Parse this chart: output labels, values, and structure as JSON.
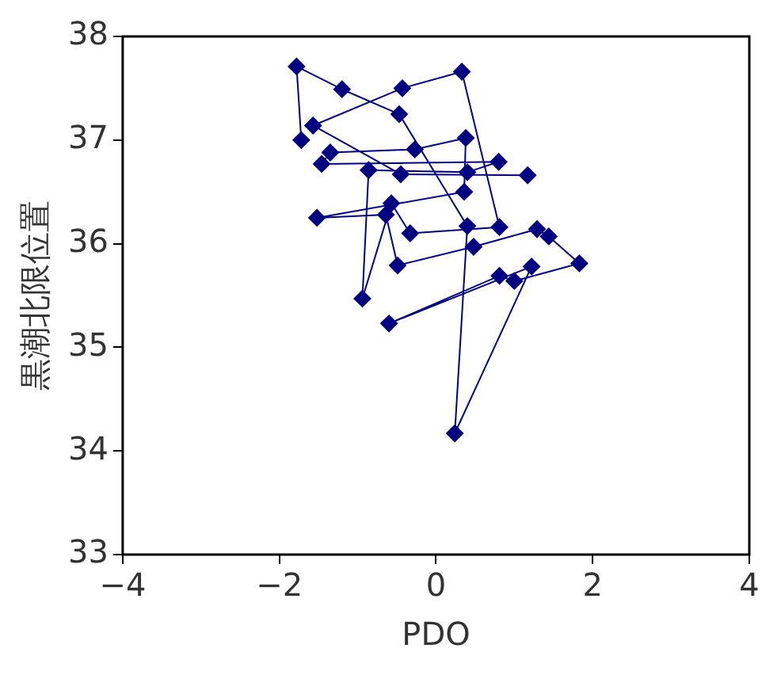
{
  "chart_data": {
    "type": "line",
    "xlabel": "PDO",
    "ylabel": "黒潮北限位置",
    "xlim": [
      -4,
      4
    ],
    "xticks": [
      -4,
      -2,
      0,
      2,
      4
    ],
    "ylim": [
      33,
      38
    ],
    "yticks": [
      33,
      34,
      35,
      36,
      37,
      38
    ],
    "grid": false,
    "legend": false,
    "marker": "diamond",
    "line_style": "solid",
    "series": [
      {
        "color": "#000080",
        "x": [
          -1.72,
          -1.78,
          -1.2,
          -0.47,
          0.4,
          0.24,
          1.22,
          -0.6,
          0.81,
          1.0,
          1.83,
          1.44,
          1.29,
          0.48,
          -0.49,
          -0.64,
          -1.52,
          0.36,
          0.38,
          -0.27,
          -1.35,
          -1.46,
          0.8,
          0.4,
          -0.86,
          -0.94,
          -0.57,
          -0.33,
          0.81,
          0.33,
          -0.43,
          -1.57,
          -0.45,
          1.17
        ],
        "values": [
          37.0,
          37.71,
          37.49,
          37.25,
          36.17,
          34.17,
          35.78,
          35.23,
          35.69,
          35.64,
          35.81,
          36.07,
          36.14,
          35.97,
          35.79,
          36.28,
          36.25,
          36.5,
          37.02,
          36.91,
          36.88,
          36.77,
          36.79,
          36.69,
          36.71,
          35.47,
          36.39,
          36.1,
          36.16,
          37.66,
          37.5,
          37.14,
          36.67,
          36.66
        ]
      }
    ]
  }
}
